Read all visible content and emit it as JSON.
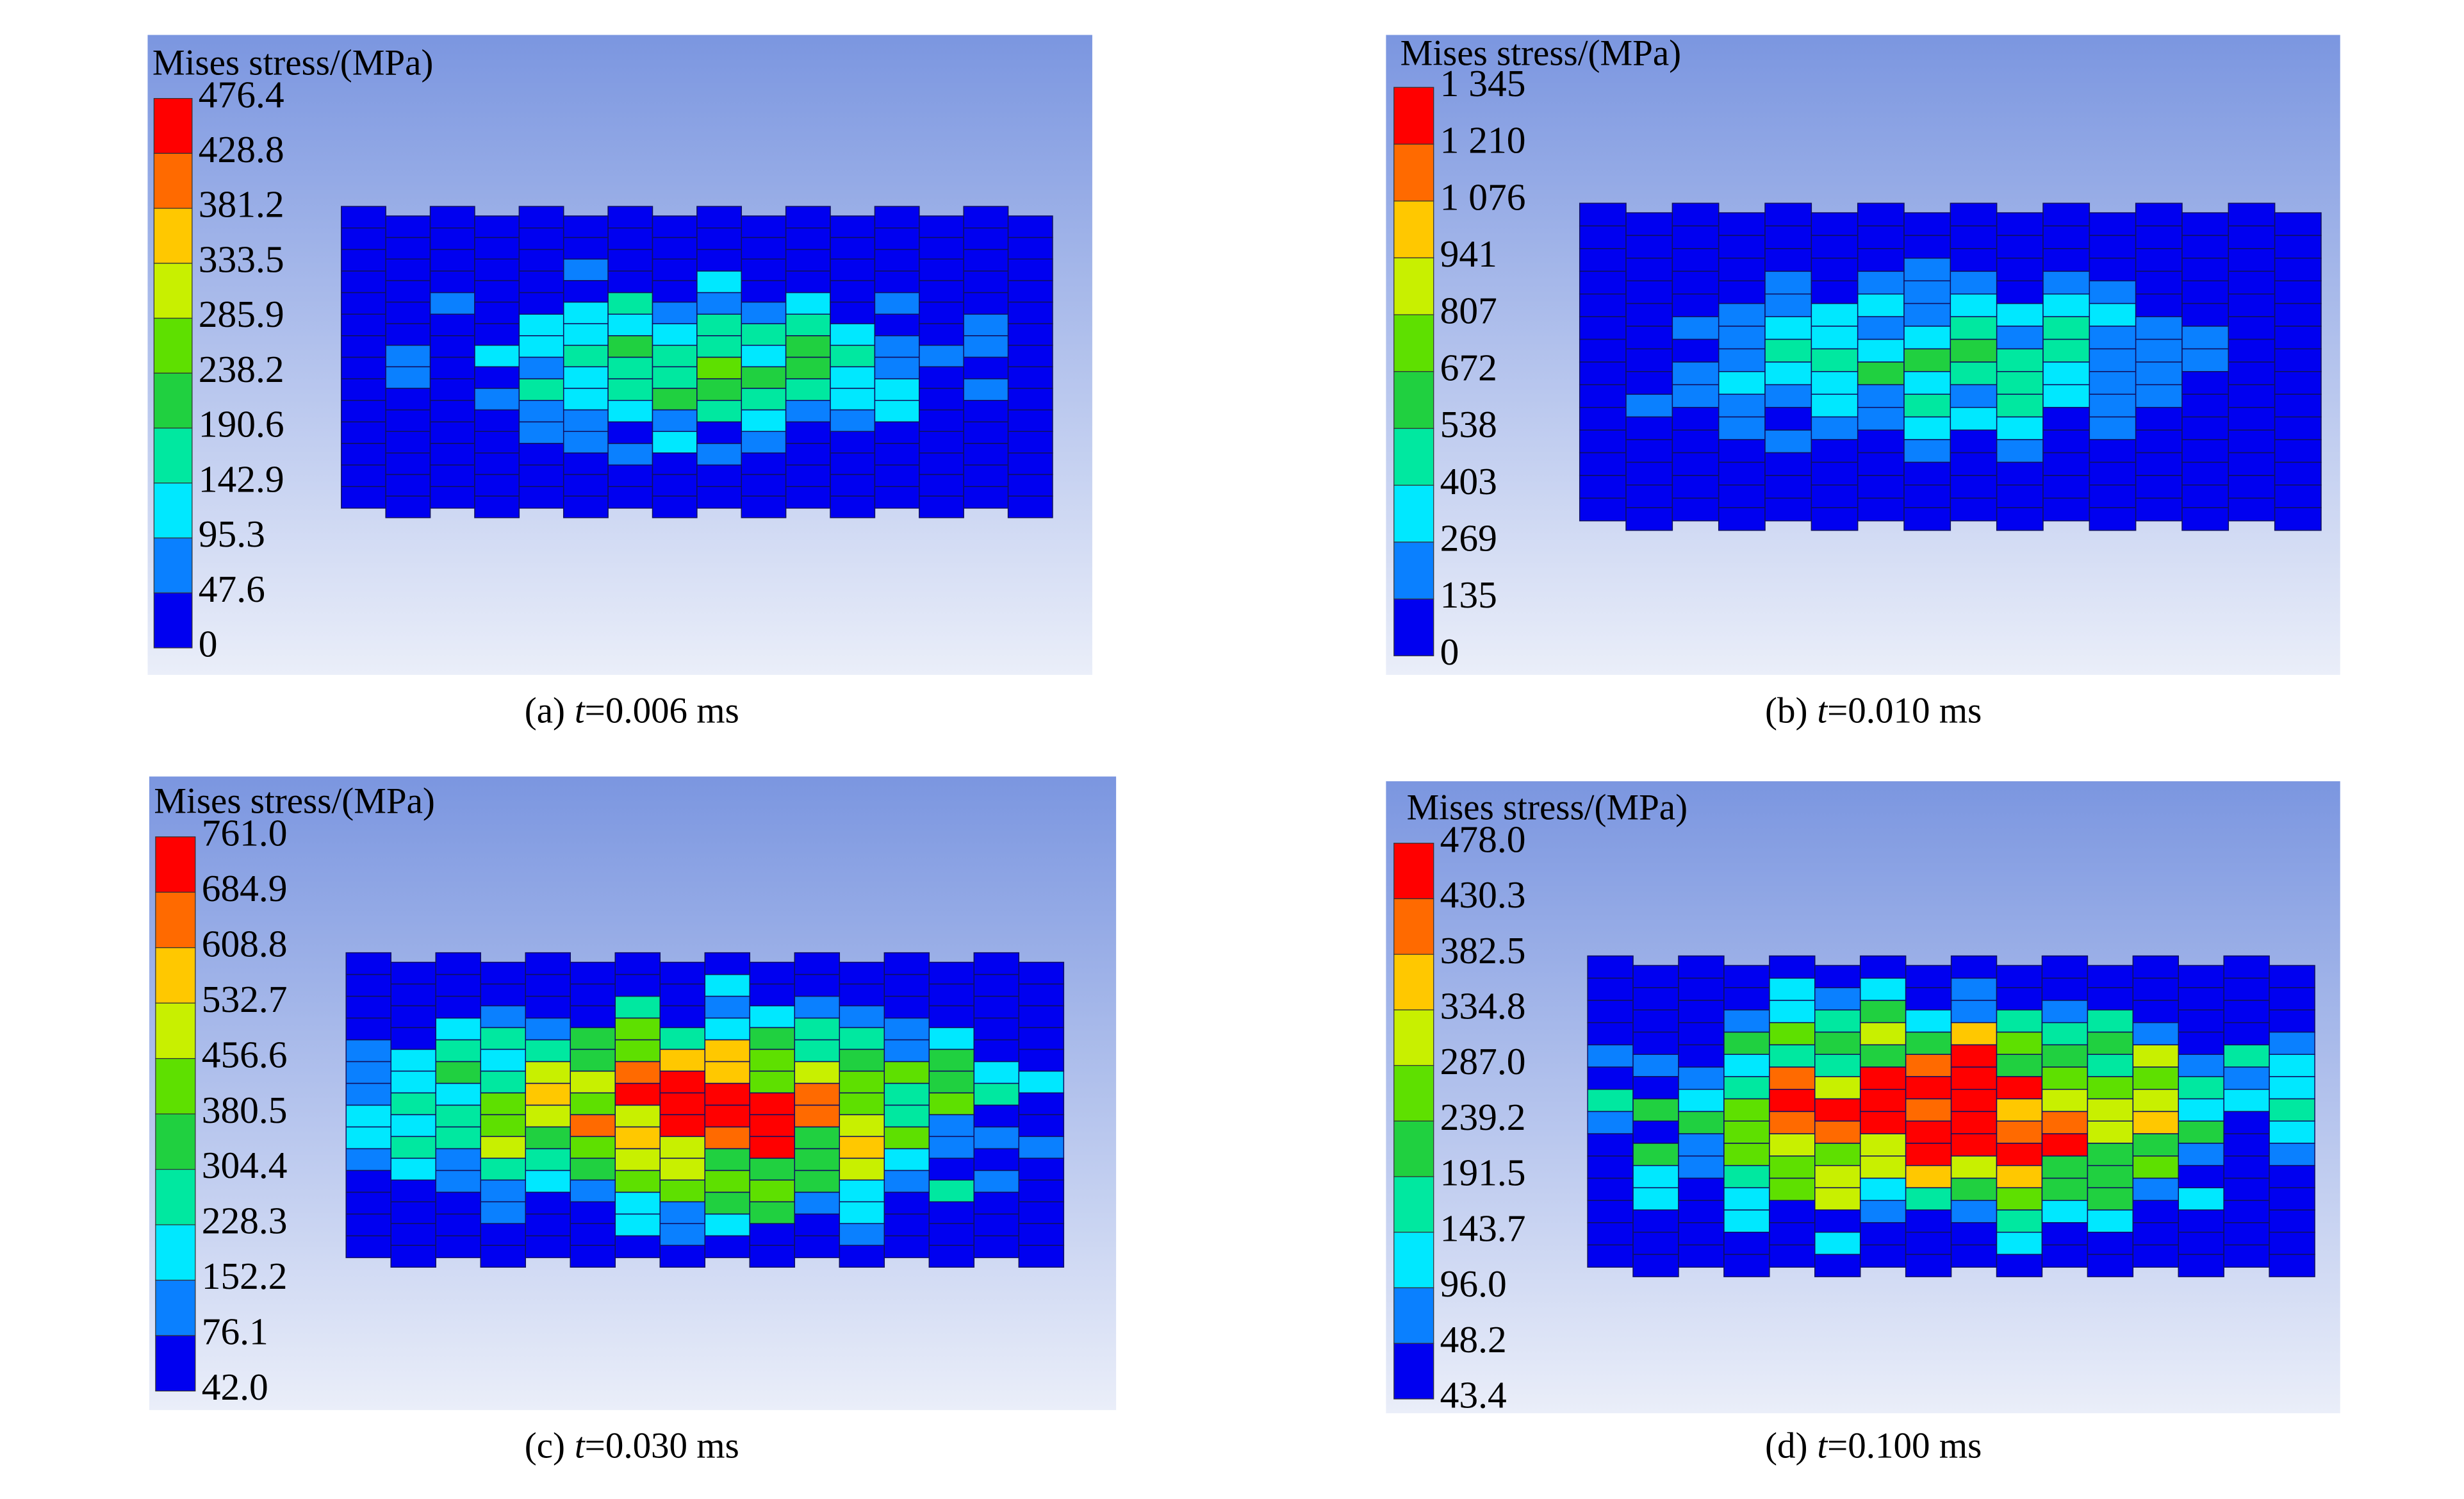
{
  "panels": [
    {
      "legend_title": "Mises stress/(MPa)",
      "legend_labels": [
        "476.4",
        "428.8",
        "381.2",
        "333.5",
        "285.9",
        "238.2",
        "190.6",
        "142.9",
        "95.3",
        "47.6",
        "0"
      ],
      "caption": {
        "label": "(a)",
        "variable": "t",
        "value": "=0.006 ms"
      }
    },
    {
      "legend_title": "Mises stress/(MPa)",
      "legend_labels": [
        "1 345",
        "1 210",
        "1 076",
        "941",
        "807",
        "672",
        "538",
        "403",
        "269",
        "135",
        "0"
      ],
      "caption": {
        "label": "(b)",
        "variable": "t",
        "value": "=0.010 ms"
      }
    },
    {
      "legend_title": "Mises stress/(MPa)",
      "legend_labels": [
        "761.0",
        "684.9",
        "608.8",
        "532.7",
        "456.6",
        "380.5",
        "304.4",
        "228.3",
        "152.2",
        "76.1",
        "42.0"
      ],
      "caption": {
        "label": "(c)",
        "variable": "t",
        "value": "=0.030 ms"
      }
    },
    {
      "legend_title": "Mises stress/(MPa)",
      "legend_labels": [
        "478.0",
        "430.3",
        "382.5",
        "334.8",
        "287.0",
        "239.2",
        "191.5",
        "143.7",
        "96.0",
        "48.2",
        "43.4"
      ],
      "caption": {
        "label": "(d)",
        "variable": "t",
        "value": "=0.100 ms"
      }
    }
  ]
}
